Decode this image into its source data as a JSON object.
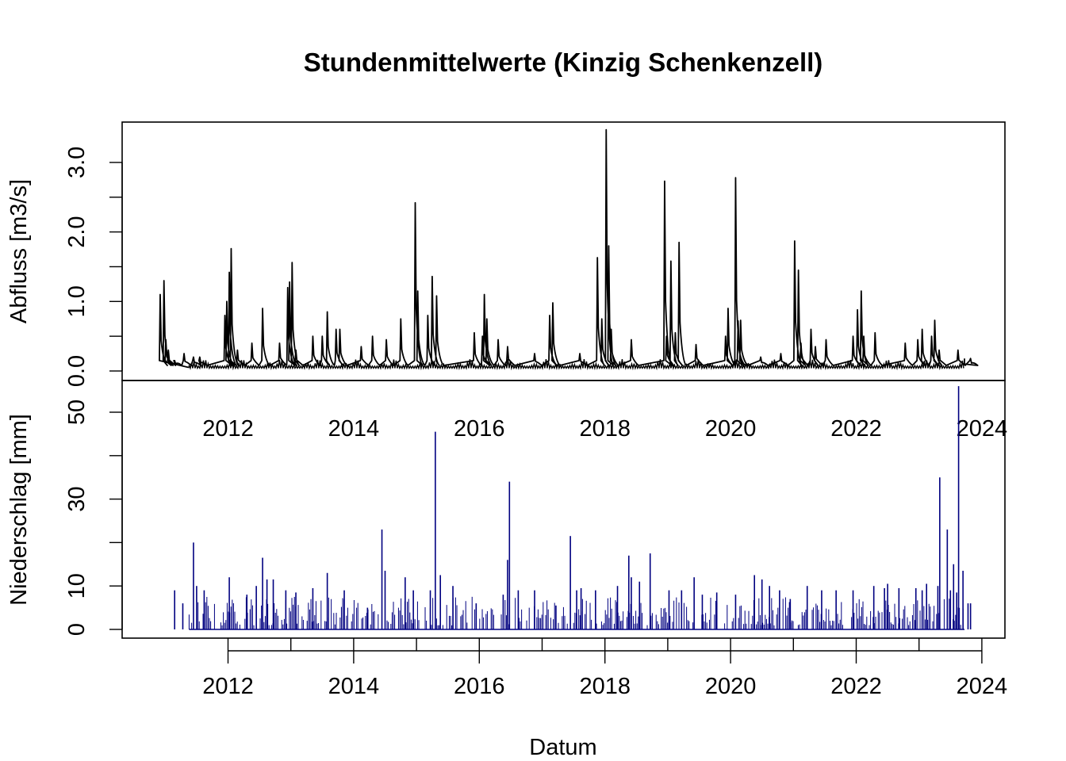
{
  "chart_data": [
    {
      "type": "line",
      "title": "Stundenmittelwerte (Kinzig Schenkenzell)",
      "ylabel": "Abfluss [m3/s]",
      "xlabel": "",
      "x_ticks": [
        "2012",
        "2014",
        "2016",
        "2018",
        "2020",
        "2022",
        "2024"
      ],
      "y_ticks": [
        "0.0",
        "1.0",
        "2.0",
        "3.0"
      ],
      "xlim": [
        2010.85,
        2023.85
      ],
      "ylim": [
        0,
        3.6
      ],
      "baseline": 0.05,
      "color": "#000000",
      "series": [
        {
          "x": [
            2010.92,
            2010.98,
            2011.01,
            2011.05,
            2011.15,
            2011.3,
            2011.45,
            2011.55,
            2011.95,
            2011.98,
            2012.02,
            2012.05,
            2012.15,
            2012.38,
            2012.55,
            2012.82,
            2012.95,
            2012.98,
            2013.02,
            2013.08,
            2013.35,
            2013.5,
            2013.58,
            2013.72,
            2013.78,
            2014.12,
            2014.3,
            2014.52,
            2014.75,
            2014.98,
            2015.02,
            2015.18,
            2015.25,
            2015.32,
            2015.92,
            2016.05,
            2016.08,
            2016.12,
            2016.3,
            2016.45,
            2016.88,
            2017.12,
            2017.17,
            2017.6,
            2017.88,
            2017.95,
            2018.02,
            2018.06,
            2018.1,
            2018.42,
            2018.95,
            2018.98,
            2019.05,
            2019.12,
            2019.18,
            2019.45,
            2019.92,
            2019.96,
            2020.08,
            2020.12,
            2020.16,
            2020.48,
            2020.8,
            2021.02,
            2021.08,
            2021.12,
            2021.28,
            2021.35,
            2021.52,
            2021.95,
            2022.02,
            2022.08,
            2022.12,
            2022.3,
            2022.78,
            2022.98,
            2023.05,
            2023.2,
            2023.25,
            2023.32,
            2023.62,
            2023.82
          ],
          "y": [
            1.1,
            1.3,
            0.45,
            0.3,
            0.15,
            0.25,
            0.2,
            0.2,
            0.8,
            1.0,
            1.42,
            1.76,
            0.3,
            0.4,
            0.9,
            0.4,
            1.2,
            1.28,
            1.56,
            0.3,
            0.5,
            0.5,
            0.85,
            0.6,
            0.6,
            0.35,
            0.5,
            0.45,
            0.75,
            2.42,
            1.15,
            0.8,
            1.36,
            1.08,
            0.55,
            0.5,
            1.1,
            0.75,
            0.45,
            0.35,
            0.25,
            0.8,
            0.98,
            0.25,
            1.63,
            0.75,
            3.47,
            1.8,
            0.6,
            0.45,
            2.73,
            0.5,
            1.58,
            0.55,
            1.85,
            0.38,
            0.5,
            0.9,
            2.78,
            0.72,
            0.73,
            0.2,
            0.25,
            1.87,
            1.45,
            0.4,
            0.6,
            0.35,
            0.45,
            0.5,
            0.88,
            1.15,
            0.5,
            0.55,
            0.4,
            0.45,
            0.6,
            0.5,
            0.73,
            0.3,
            0.3,
            0.18
          ]
        }
      ]
    },
    {
      "type": "bar",
      "title": "",
      "ylabel": "Niederschlag [mm]",
      "xlabel": "Datum",
      "x_ticks": [
        "2012",
        "2014",
        "2016",
        "2018",
        "2020",
        "2022",
        "2024"
      ],
      "y_ticks": [
        "0",
        "10",
        "30",
        "50"
      ],
      "xlim": [
        2010.85,
        2023.85
      ],
      "ylim": [
        0,
        55
      ],
      "color": "#000080",
      "series": [
        {
          "x": [
            2011.15,
            2011.28,
            2011.45,
            2011.5,
            2011.62,
            2012.02,
            2012.3,
            2012.45,
            2012.55,
            2012.62,
            2012.72,
            2012.92,
            2013.08,
            2013.35,
            2013.58,
            2013.85,
            2014.22,
            2014.45,
            2014.5,
            2014.82,
            2014.95,
            2015.22,
            2015.3,
            2015.38,
            2015.58,
            2015.95,
            2016.38,
            2016.45,
            2016.48,
            2016.62,
            2016.88,
            2017.22,
            2017.45,
            2017.55,
            2017.62,
            2017.85,
            2018.2,
            2018.38,
            2018.42,
            2018.55,
            2018.72,
            2019.02,
            2019.22,
            2019.42,
            2019.55,
            2019.78,
            2020.08,
            2020.38,
            2020.5,
            2020.62,
            2020.78,
            2020.95,
            2021.22,
            2021.45,
            2021.68,
            2021.95,
            2022.28,
            2022.45,
            2022.5,
            2022.68,
            2022.95,
            2023.05,
            2023.12,
            2023.3,
            2023.33,
            2023.45,
            2023.5,
            2023.55,
            2023.6,
            2023.63,
            2023.7,
            2023.78,
            2023.82
          ],
          "y": [
            9,
            6,
            20,
            10,
            9,
            12,
            8,
            10,
            16.5,
            11.5,
            11.5,
            9,
            8.5,
            9.5,
            13,
            9,
            5,
            23,
            13.5,
            12,
            9,
            9,
            45.5,
            12.5,
            10,
            6,
            8,
            16,
            34,
            9,
            9,
            5.5,
            21.5,
            9,
            9.5,
            9,
            10,
            17,
            12,
            11,
            17.5,
            9,
            9,
            12,
            8,
            8.5,
            8,
            12.5,
            11.5,
            10,
            9,
            7,
            10,
            9,
            9,
            9,
            10,
            9.5,
            10.5,
            9.5,
            9.5,
            9,
            10.5,
            10,
            35,
            23,
            9,
            15,
            8.5,
            56,
            13.5,
            6,
            6
          ]
        }
      ]
    }
  ]
}
